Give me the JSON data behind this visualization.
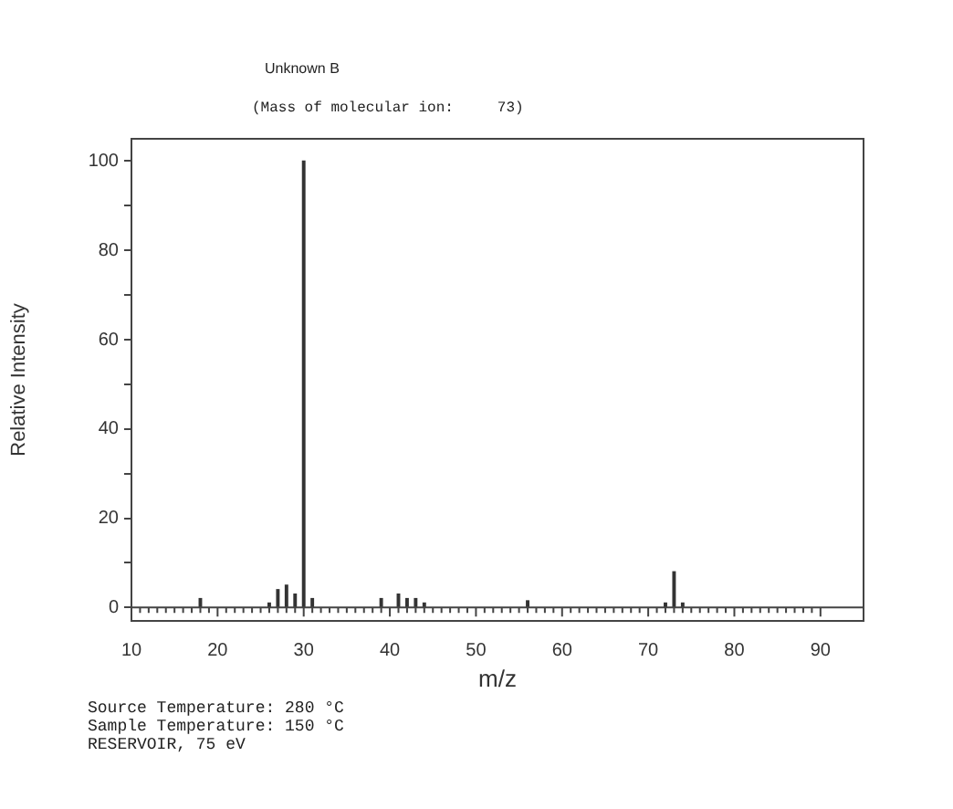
{
  "chart_data": {
    "type": "bar",
    "title": "Unknown B",
    "subtitle": "(Mass of molecular ion:     73)",
    "xlabel": "m/z",
    "ylabel": "Relative Intensity",
    "x": [
      18,
      26,
      27,
      28,
      29,
      30,
      31,
      39,
      41,
      42,
      43,
      44,
      56,
      72,
      73,
      74
    ],
    "values": [
      2,
      1,
      4,
      5,
      3,
      100,
      2,
      2,
      3,
      2,
      2,
      1,
      1.5,
      1,
      8,
      1
    ],
    "color": "#333333",
    "xlim": [
      10,
      95
    ],
    "xticks": [
      10,
      {
        "value": 11,
        "label": null
      },
      {
        "value": 12,
        "label": null
      },
      {
        "value": 13,
        "label": null
      },
      {
        "value": 14,
        "label": null
      },
      {
        "value": 15,
        "label": null
      },
      {
        "value": 16,
        "label": null
      },
      {
        "value": 17,
        "label": null
      },
      {
        "value": 18,
        "label": null
      },
      {
        "value": 19,
        "label": null
      },
      20,
      {
        "value": 21,
        "label": null
      },
      {
        "value": 22,
        "label": null
      },
      {
        "value": 23,
        "label": null
      },
      {
        "value": 24,
        "label": null
      },
      {
        "value": 25,
        "label": null
      },
      {
        "value": 26,
        "label": null
      },
      {
        "value": 27,
        "label": null
      },
      {
        "value": 28,
        "label": null
      },
      {
        "value": 29,
        "label": null
      },
      30,
      {
        "value": 31,
        "label": null
      },
      {
        "value": 32,
        "label": null
      },
      {
        "value": 33,
        "label": null
      },
      {
        "value": 34,
        "label": null
      },
      {
        "value": 35,
        "label": null
      },
      {
        "value": 36,
        "label": null
      },
      {
        "value": 37,
        "label": null
      },
      {
        "value": 38,
        "label": null
      },
      {
        "value": 39,
        "label": null
      },
      40,
      {
        "value": 41,
        "label": null
      },
      {
        "value": 42,
        "label": null
      },
      {
        "value": 43,
        "label": null
      },
      {
        "value": 44,
        "label": null
      },
      {
        "value": 45,
        "label": null
      },
      {
        "value": 46,
        "label": null
      },
      {
        "value": 47,
        "label": null
      },
      {
        "value": 48,
        "label": null
      },
      {
        "value": 49,
        "label": null
      },
      50,
      {
        "value": 51,
        "label": null
      },
      {
        "value": 52,
        "label": null
      },
      {
        "value": 53,
        "label": null
      },
      {
        "value": 54,
        "label": null
      },
      {
        "value": 55,
        "label": null
      },
      {
        "value": 56,
        "label": null
      },
      {
        "value": 57,
        "label": null
      },
      {
        "value": 58,
        "label": null
      },
      {
        "value": 59,
        "label": null
      },
      60,
      {
        "value": 61,
        "label": null
      },
      {
        "value": 62,
        "label": null
      },
      {
        "value": 63,
        "label": null
      },
      {
        "value": 64,
        "label": null
      },
      {
        "value": 65,
        "label": null
      },
      {
        "value": 66,
        "label": null
      },
      {
        "value": 67,
        "label": null
      },
      {
        "value": 68,
        "label": null
      },
      {
        "value": 69,
        "label": null
      },
      70,
      {
        "value": 71,
        "label": null
      },
      {
        "value": 72,
        "label": null
      },
      {
        "value": 73,
        "label": null
      },
      {
        "value": 74,
        "label": null
      },
      {
        "value": 75,
        "label": null
      },
      {
        "value": 76,
        "label": null
      },
      {
        "value": 77,
        "label": null
      },
      {
        "value": 78,
        "label": null
      },
      {
        "value": 79,
        "label": null
      },
      80,
      {
        "value": 81,
        "label": null
      },
      {
        "value": 82,
        "label": null
      },
      {
        "value": 83,
        "label": null
      },
      {
        "value": 84,
        "label": null
      },
      {
        "value": 85,
        "label": null
      },
      {
        "value": 86,
        "label": null
      },
      {
        "value": 87,
        "label": null
      },
      {
        "value": 88,
        "label": null
      },
      {
        "value": 89,
        "label": null
      },
      90
    ],
    "ylim": [
      -3,
      105
    ],
    "yticks": [
      0,
      {
        "value": 10,
        "label": null
      },
      20,
      {
        "value": 30,
        "label": null
      },
      40,
      {
        "value": 50,
        "label": null
      },
      60,
      {
        "value": 70,
        "label": null
      },
      80,
      {
        "value": 90,
        "label": null
      },
      100
    ],
    "ref_lines": [
      {
        "axis": "y",
        "value": 0
      }
    ],
    "grid": false,
    "legend": false,
    "annotations": [
      "Source Temperature: 280 °C",
      "Sample Temperature: 150 °C",
      "RESERVOIR, 75 eV"
    ]
  }
}
